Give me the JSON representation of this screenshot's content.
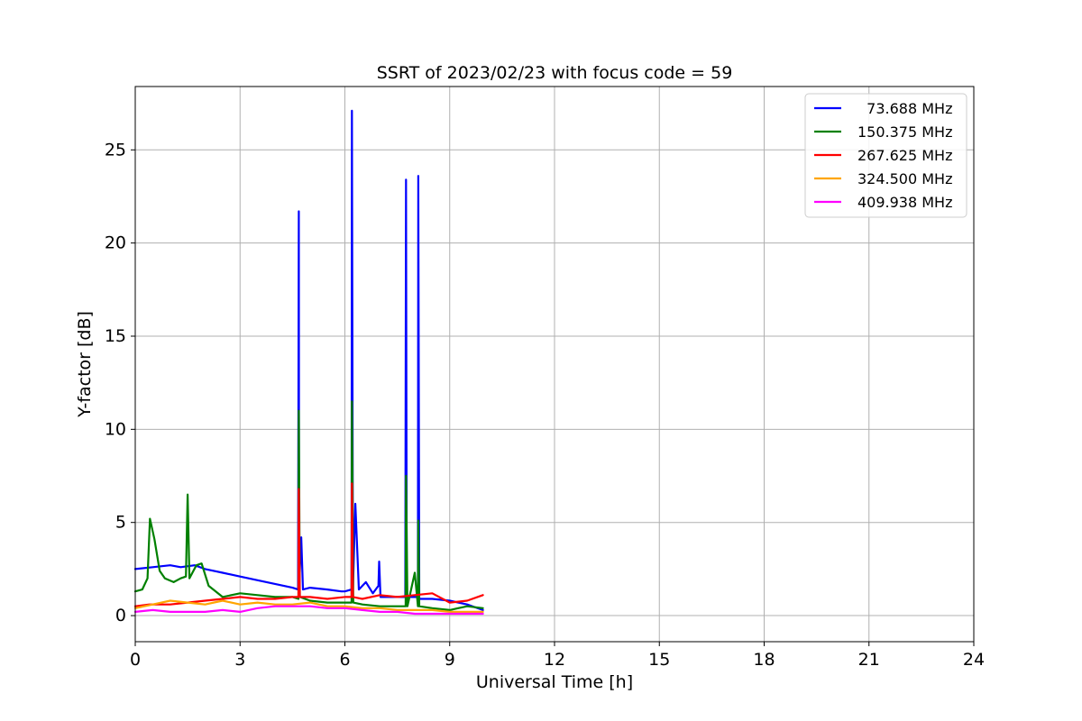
{
  "chart_data": {
    "type": "line",
    "title": "SSRT of 2023/02/23 with focus code = 59",
    "xlabel": "Universal Time [h]",
    "ylabel": "Y-factor [dB]",
    "xlim": [
      0,
      24
    ],
    "ylim": [
      -1.4,
      28.4
    ],
    "xticks": [
      0,
      3,
      6,
      9,
      12,
      15,
      18,
      21,
      24
    ],
    "yticks": [
      0,
      5,
      10,
      15,
      20,
      25
    ],
    "xtick_labels": [
      "0",
      "3",
      "6",
      "9",
      "12",
      "15",
      "18",
      "21",
      "24"
    ],
    "ytick_labels": [
      "0",
      "5",
      "10",
      "15",
      "20",
      "25"
    ],
    "grid": true,
    "legend_position": "top-right",
    "series": [
      {
        "name": "  73.688 MHz",
        "color": "#0000ff",
        "points": [
          [
            0.0,
            2.5
          ],
          [
            0.5,
            2.6
          ],
          [
            1.0,
            2.7
          ],
          [
            1.3,
            2.6
          ],
          [
            1.7,
            2.7
          ],
          [
            2.0,
            2.5
          ],
          [
            2.5,
            2.3
          ],
          [
            3.0,
            2.1
          ],
          [
            3.5,
            1.9
          ],
          [
            4.0,
            1.7
          ],
          [
            4.5,
            1.5
          ],
          [
            4.66,
            1.4
          ],
          [
            4.68,
            21.7
          ],
          [
            4.69,
            1.5
          ],
          [
            4.75,
            4.2
          ],
          [
            4.8,
            1.4
          ],
          [
            5.0,
            1.5
          ],
          [
            5.5,
            1.4
          ],
          [
            5.9,
            1.3
          ],
          [
            6.0,
            1.3
          ],
          [
            6.19,
            1.4
          ],
          [
            6.2,
            27.1
          ],
          [
            6.23,
            1.4
          ],
          [
            6.3,
            6.0
          ],
          [
            6.4,
            1.4
          ],
          [
            6.6,
            1.8
          ],
          [
            6.8,
            1.2
          ],
          [
            6.96,
            1.6
          ],
          [
            6.98,
            2.9
          ],
          [
            7.02,
            1.0
          ],
          [
            7.4,
            1.0
          ],
          [
            7.73,
            1.0
          ],
          [
            7.75,
            23.4
          ],
          [
            7.77,
            1.0
          ],
          [
            7.95,
            1.0
          ],
          [
            8.09,
            1.0
          ],
          [
            8.1,
            23.6
          ],
          [
            8.13,
            0.9
          ],
          [
            8.5,
            0.9
          ],
          [
            9.0,
            0.8
          ],
          [
            9.5,
            0.6
          ],
          [
            9.95,
            0.3
          ]
        ]
      },
      {
        "name": "150.375 MHz",
        "color": "#008000",
        "points": [
          [
            0.0,
            1.3
          ],
          [
            0.2,
            1.4
          ],
          [
            0.35,
            2.0
          ],
          [
            0.42,
            5.2
          ],
          [
            0.55,
            4.1
          ],
          [
            0.7,
            2.4
          ],
          [
            0.85,
            2.0
          ],
          [
            1.1,
            1.8
          ],
          [
            1.3,
            2.0
          ],
          [
            1.45,
            2.1
          ],
          [
            1.5,
            6.5
          ],
          [
            1.55,
            2.0
          ],
          [
            1.75,
            2.7
          ],
          [
            1.9,
            2.8
          ],
          [
            2.1,
            1.6
          ],
          [
            2.5,
            1.0
          ],
          [
            3.0,
            1.2
          ],
          [
            3.5,
            1.1
          ],
          [
            4.0,
            1.0
          ],
          [
            4.5,
            1.0
          ],
          [
            4.67,
            0.9
          ],
          [
            4.68,
            11.0
          ],
          [
            4.71,
            1.0
          ],
          [
            5.0,
            0.8
          ],
          [
            5.5,
            0.7
          ],
          [
            6.0,
            0.7
          ],
          [
            6.19,
            0.7
          ],
          [
            6.2,
            11.5
          ],
          [
            6.24,
            0.7
          ],
          [
            6.5,
            0.6
          ],
          [
            7.0,
            0.5
          ],
          [
            7.5,
            0.5
          ],
          [
            7.74,
            0.5
          ],
          [
            7.75,
            7.5
          ],
          [
            7.79,
            0.5
          ],
          [
            8.0,
            2.3
          ],
          [
            8.09,
            0.5
          ],
          [
            8.1,
            5.1
          ],
          [
            8.13,
            0.5
          ],
          [
            8.5,
            0.4
          ],
          [
            9.0,
            0.3
          ],
          [
            9.5,
            0.5
          ],
          [
            9.95,
            0.4
          ]
        ]
      },
      {
        "name": "267.625 MHz",
        "color": "#ff0000",
        "points": [
          [
            0.0,
            0.5
          ],
          [
            0.4,
            0.6
          ],
          [
            1.0,
            0.6
          ],
          [
            1.5,
            0.7
          ],
          [
            2.0,
            0.8
          ],
          [
            2.5,
            0.9
          ],
          [
            3.0,
            1.0
          ],
          [
            3.5,
            0.9
          ],
          [
            4.0,
            0.9
          ],
          [
            4.5,
            1.0
          ],
          [
            4.67,
            1.0
          ],
          [
            4.68,
            6.8
          ],
          [
            4.71,
            1.0
          ],
          [
            5.0,
            1.0
          ],
          [
            5.5,
            0.9
          ],
          [
            6.0,
            1.0
          ],
          [
            6.19,
            1.0
          ],
          [
            6.2,
            7.1
          ],
          [
            6.23,
            1.0
          ],
          [
            6.5,
            0.9
          ],
          [
            7.0,
            1.1
          ],
          [
            7.5,
            1.0
          ],
          [
            8.0,
            1.1
          ],
          [
            8.5,
            1.2
          ],
          [
            9.0,
            0.7
          ],
          [
            9.5,
            0.8
          ],
          [
            9.95,
            1.1
          ]
        ]
      },
      {
        "name": "324.500 MHz",
        "color": "#ffa500",
        "points": [
          [
            0.0,
            0.4
          ],
          [
            0.5,
            0.6
          ],
          [
            1.0,
            0.8
          ],
          [
            1.5,
            0.7
          ],
          [
            2.0,
            0.6
          ],
          [
            2.5,
            0.8
          ],
          [
            3.0,
            0.6
          ],
          [
            3.5,
            0.7
          ],
          [
            4.0,
            0.6
          ],
          [
            4.5,
            0.6
          ],
          [
            5.0,
            0.7
          ],
          [
            5.5,
            0.5
          ],
          [
            6.0,
            0.5
          ],
          [
            6.5,
            0.4
          ],
          [
            7.0,
            0.4
          ],
          [
            7.5,
            0.3
          ],
          [
            8.0,
            0.3
          ],
          [
            8.5,
            0.3
          ],
          [
            9.0,
            0.2
          ],
          [
            9.5,
            0.2
          ],
          [
            9.95,
            0.2
          ]
        ]
      },
      {
        "name": "409.938 MHz",
        "color": "#ff00ff",
        "points": [
          [
            0.0,
            0.2
          ],
          [
            0.5,
            0.3
          ],
          [
            1.0,
            0.2
          ],
          [
            1.5,
            0.2
          ],
          [
            2.0,
            0.2
          ],
          [
            2.5,
            0.3
          ],
          [
            3.0,
            0.2
          ],
          [
            3.5,
            0.4
          ],
          [
            4.0,
            0.5
          ],
          [
            4.5,
            0.5
          ],
          [
            5.0,
            0.5
          ],
          [
            5.5,
            0.4
          ],
          [
            6.0,
            0.4
          ],
          [
            6.5,
            0.3
          ],
          [
            7.0,
            0.2
          ],
          [
            7.5,
            0.2
          ],
          [
            8.0,
            0.1
          ],
          [
            8.5,
            0.1
          ],
          [
            9.0,
            0.1
          ],
          [
            9.5,
            0.1
          ],
          [
            9.95,
            0.1
          ]
        ]
      }
    ]
  }
}
